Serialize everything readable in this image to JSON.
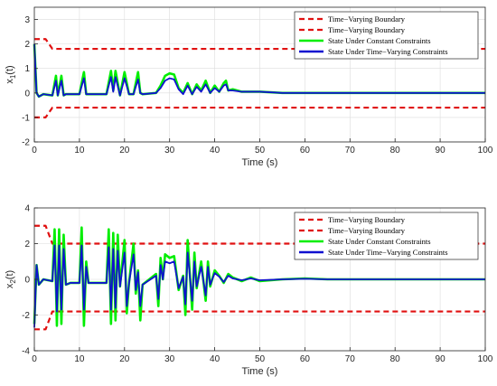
{
  "chart_data": [
    {
      "type": "line",
      "xlabel": "Time (s)",
      "ylabel_main": "x",
      "ylabel_sub": "1",
      "ylabel_suffix": "(t)",
      "xlim": [
        0,
        100
      ],
      "ylim": [
        -2,
        3.5
      ],
      "xticks": [
        0,
        10,
        20,
        30,
        40,
        50,
        60,
        70,
        80,
        90,
        100
      ],
      "yticks": [
        -2,
        -1,
        0,
        1,
        2,
        3
      ],
      "grid": true,
      "legend_position": "top-right",
      "legend": [
        {
          "label": "Time−Varying Boundary",
          "color": "#e01010",
          "style": "dashed"
        },
        {
          "label": "Time−Varying Boundary",
          "color": "#e01010",
          "style": "dashed"
        },
        {
          "label": "State Under Constant Constraints",
          "color": "#00ee00",
          "style": "solid"
        },
        {
          "label": "State Under Time−Varying Constraints",
          "color": "#1010d0",
          "style": "solid"
        }
      ],
      "series": [
        {
          "name": "Time−Varying Boundary",
          "color": "#e01010",
          "style": "dashed",
          "x": [
            0,
            2.5,
            4,
            100
          ],
          "y": [
            2.2,
            2.2,
            1.8,
            1.8
          ]
        },
        {
          "name": "Time−Varying Boundary",
          "color": "#e01010",
          "style": "dashed",
          "x": [
            0,
            2.5,
            4,
            100
          ],
          "y": [
            -1.0,
            -1.0,
            -0.6,
            -0.6
          ]
        },
        {
          "name": "State Under Constant Constraints",
          "color": "#00ee00",
          "style": "solid",
          "x": [
            0,
            0.5,
            1,
            2,
            4,
            4.8,
            5.2,
            6,
            6.5,
            7,
            8,
            10,
            11,
            11.5,
            12,
            16,
            17,
            17.5,
            18,
            19,
            20,
            21,
            22,
            23,
            23.5,
            24,
            27,
            28,
            29,
            30,
            31,
            32,
            33,
            34,
            35,
            36,
            37,
            38,
            39,
            40,
            41,
            42,
            42.5,
            43,
            44,
            46,
            48,
            50,
            55,
            60,
            65,
            70,
            75,
            100
          ],
          "y": [
            2.0,
            0.0,
            -0.15,
            -0.05,
            -0.1,
            0.7,
            -0.1,
            0.7,
            -0.1,
            -0.05,
            -0.05,
            -0.05,
            0.85,
            -0.05,
            -0.05,
            -0.05,
            0.9,
            0.1,
            0.9,
            -0.1,
            0.85,
            -0.05,
            -0.05,
            0.85,
            0.0,
            -0.05,
            0.0,
            0.3,
            0.7,
            0.8,
            0.75,
            0.2,
            0.0,
            0.4,
            -0.05,
            0.35,
            0.1,
            0.5,
            0.0,
            0.3,
            0.05,
            0.4,
            0.5,
            0.1,
            0.15,
            0.05,
            0.05,
            0.05,
            0.0,
            0.0,
            0.0,
            0.0,
            0.0,
            0.0
          ]
        },
        {
          "name": "State Under Time−Varying Constraints",
          "color": "#1010d0",
          "style": "solid",
          "x": [
            0,
            0.5,
            1,
            2,
            4,
            4.8,
            5.2,
            6,
            6.5,
            7,
            8,
            10,
            11,
            11.5,
            12,
            16,
            17,
            17.5,
            18,
            19,
            20,
            21,
            22,
            23,
            23.5,
            24,
            27,
            28,
            29,
            30,
            31,
            32,
            33,
            34,
            35,
            36,
            37,
            38,
            39,
            40,
            41,
            42,
            42.5,
            43,
            44,
            46,
            48,
            50,
            55,
            60,
            65,
            70,
            75,
            100
          ],
          "y": [
            2.0,
            0.0,
            -0.15,
            -0.05,
            -0.1,
            0.5,
            -0.1,
            0.5,
            -0.1,
            -0.05,
            -0.05,
            -0.05,
            0.6,
            -0.05,
            -0.05,
            -0.05,
            0.65,
            0.05,
            0.65,
            -0.1,
            0.6,
            -0.05,
            -0.05,
            0.55,
            0.0,
            -0.05,
            0.0,
            0.2,
            0.5,
            0.6,
            0.55,
            0.15,
            -0.05,
            0.3,
            -0.05,
            0.25,
            0.05,
            0.35,
            0.0,
            0.2,
            0.05,
            0.3,
            0.35,
            0.1,
            0.1,
            0.05,
            0.05,
            0.05,
            0.0,
            0.0,
            0.0,
            0.0,
            0.0,
            0.0
          ]
        }
      ]
    },
    {
      "type": "line",
      "xlabel": "Time (s)",
      "ylabel_main": "x",
      "ylabel_sub": "2",
      "ylabel_suffix": "(t)",
      "xlim": [
        0,
        100
      ],
      "ylim": [
        -4,
        4
      ],
      "xticks": [
        0,
        10,
        20,
        30,
        40,
        50,
        60,
        70,
        80,
        90,
        100
      ],
      "yticks": [
        -4,
        -2,
        0,
        2,
        4
      ],
      "grid": true,
      "legend_position": "top-right",
      "legend": [
        {
          "label": "Time−Varying Boundary",
          "color": "#e01010",
          "style": "dashed"
        },
        {
          "label": "Time−Varying Boundary",
          "color": "#e01010",
          "style": "dashed"
        },
        {
          "label": "State Under Constant Constraints",
          "color": "#00ee00",
          "style": "solid"
        },
        {
          "label": "State Under Time−Varying Constraints",
          "color": "#1010d0",
          "style": "solid"
        }
      ],
      "series": [
        {
          "name": "Time−Varying Boundary",
          "color": "#e01010",
          "style": "dashed",
          "x": [
            0,
            2.5,
            4,
            100
          ],
          "y": [
            3.0,
            3.0,
            2.0,
            2.0
          ]
        },
        {
          "name": "Time−Varying Boundary",
          "color": "#e01010",
          "style": "dashed",
          "x": [
            0,
            2.5,
            4,
            100
          ],
          "y": [
            -2.8,
            -2.8,
            -1.8,
            -1.8
          ]
        },
        {
          "name": "State Under Constant Constraints",
          "color": "#00ee00",
          "style": "solid",
          "x": [
            0,
            0.5,
            1,
            2,
            4,
            4.5,
            5,
            5.5,
            6,
            6.5,
            7,
            8,
            10,
            10.5,
            11,
            11.5,
            12,
            16,
            16.5,
            17,
            17.5,
            18,
            18.5,
            19,
            20,
            20.5,
            21,
            22,
            22.5,
            23,
            23.5,
            24,
            27,
            27.5,
            28,
            28.5,
            29,
            30,
            31,
            32,
            33,
            33.5,
            34,
            35,
            35.5,
            36,
            37,
            38,
            38.5,
            39,
            40,
            41,
            42,
            43,
            44,
            46,
            48,
            50,
            55,
            60,
            65,
            70,
            75,
            100
          ],
          "y": [
            -2.5,
            0.8,
            -0.3,
            0.0,
            -0.1,
            2.8,
            -2.6,
            2.8,
            -2.5,
            2.5,
            -0.3,
            -0.2,
            -0.2,
            2.9,
            -2.6,
            1.0,
            -0.2,
            -0.2,
            2.8,
            -2.5,
            2.6,
            -2.3,
            2.5,
            -0.4,
            2.2,
            -1.9,
            -0.2,
            2.0,
            -0.8,
            0.5,
            -2.3,
            -0.3,
            0.3,
            -1.5,
            1.2,
            0.0,
            1.4,
            1.2,
            1.3,
            -0.6,
            0.2,
            -2.0,
            2.2,
            -1.7,
            1.5,
            -0.5,
            1.0,
            -1.2,
            1.0,
            -0.4,
            0.5,
            0.2,
            -0.2,
            0.3,
            0.1,
            -0.1,
            0.1,
            -0.1,
            0.0,
            0.05,
            0.0,
            0.0,
            0.0,
            0.0
          ]
        },
        {
          "name": "State Under Time−Varying Constraints",
          "color": "#1010d0",
          "style": "solid",
          "x": [
            0,
            0.5,
            1,
            2,
            4,
            4.5,
            5,
            5.5,
            6,
            6.5,
            7,
            8,
            10,
            10.5,
            11,
            11.5,
            12,
            16,
            16.5,
            17,
            17.5,
            18,
            18.5,
            19,
            20,
            20.5,
            21,
            22,
            22.5,
            23,
            23.5,
            24,
            27,
            27.5,
            28,
            28.5,
            29,
            30,
            31,
            32,
            33,
            33.5,
            34,
            35,
            35.5,
            36,
            37,
            38,
            38.5,
            39,
            40,
            41,
            42,
            43,
            44,
            46,
            48,
            50,
            55,
            60,
            65,
            70,
            75,
            100
          ],
          "y": [
            -2.7,
            0.8,
            -0.3,
            0.0,
            -0.1,
            1.9,
            -1.8,
            1.9,
            -1.7,
            1.7,
            -0.3,
            -0.2,
            -0.2,
            1.9,
            -1.7,
            0.7,
            -0.2,
            -0.2,
            1.8,
            -1.7,
            1.7,
            -1.6,
            1.6,
            -0.4,
            1.5,
            -1.5,
            -0.2,
            1.4,
            -0.6,
            0.4,
            -1.5,
            -0.3,
            0.2,
            -1.1,
            0.8,
            0.0,
            1.0,
            0.9,
            1.0,
            -0.5,
            0.15,
            -1.4,
            1.5,
            -1.2,
            1.0,
            -0.4,
            0.7,
            -0.9,
            0.7,
            -0.3,
            0.35,
            0.15,
            -0.15,
            0.2,
            0.05,
            -0.05,
            0.05,
            -0.05,
            0.0,
            0.03,
            0.0,
            0.0,
            0.0,
            0.0
          ]
        }
      ]
    }
  ]
}
